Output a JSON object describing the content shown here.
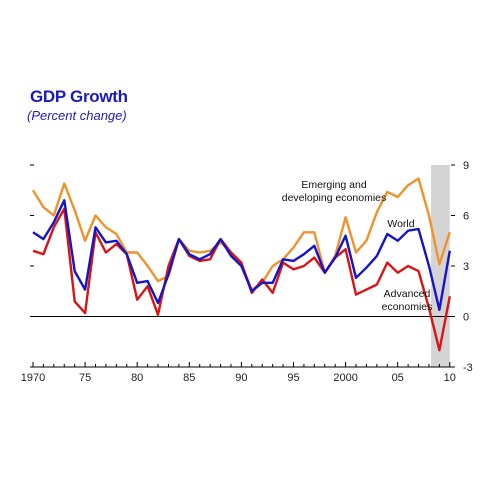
{
  "chart_data": {
    "type": "line",
    "title": "GDP Growth",
    "subtitle": "(Percent change)",
    "xlabel": "",
    "ylabel": "",
    "x": [
      1970,
      1971,
      1972,
      1973,
      1974,
      1975,
      1976,
      1977,
      1978,
      1979,
      1980,
      1981,
      1982,
      1983,
      1984,
      1985,
      1986,
      1987,
      1988,
      1989,
      1990,
      1991,
      1992,
      1993,
      1994,
      1995,
      1996,
      1997,
      1998,
      1999,
      2000,
      2001,
      2002,
      2003,
      2004,
      2005,
      2006,
      2007,
      2008,
      2009,
      2010
    ],
    "xlim": [
      1970,
      2010.5
    ],
    "ylim": [
      -3,
      9
    ],
    "x_tick_labels": [
      {
        "value": 1970,
        "label": "1970"
      },
      {
        "value": 1975,
        "label": "75"
      },
      {
        "value": 1980,
        "label": "80"
      },
      {
        "value": 1985,
        "label": "85"
      },
      {
        "value": 1990,
        "label": "90"
      },
      {
        "value": 1995,
        "label": "95"
      },
      {
        "value": 2000,
        "label": "2000"
      },
      {
        "value": 2005,
        "label": "05"
      },
      {
        "value": 2010,
        "label": "10"
      }
    ],
    "y_ticks": [
      -3,
      0,
      3,
      6,
      9
    ],
    "shaded_region": [
      2008.2,
      2010.0
    ],
    "grid": false,
    "series": [
      {
        "name": "Emerging and developing economies",
        "color": "#f0922a",
        "values": [
          7.5,
          6.5,
          6.0,
          7.9,
          6.3,
          4.5,
          6.0,
          5.3,
          4.9,
          3.8,
          3.8,
          3.0,
          2.1,
          2.4,
          4.6,
          3.9,
          3.8,
          3.9,
          4.4,
          3.8,
          3.1,
          1.6,
          2.0,
          3.0,
          3.4,
          4.1,
          5.0,
          5.0,
          2.6,
          3.6,
          5.9,
          3.8,
          4.5,
          6.2,
          7.4,
          7.1,
          7.8,
          8.2,
          6.0,
          3.1,
          5.0
        ]
      },
      {
        "name": "World",
        "color": "#1414c8",
        "values": [
          5.0,
          4.6,
          5.6,
          6.9,
          2.7,
          1.6,
          5.3,
          4.4,
          4.5,
          3.7,
          2.0,
          2.1,
          0.8,
          2.5,
          4.6,
          3.7,
          3.4,
          3.7,
          4.6,
          3.6,
          3.0,
          1.5,
          2.0,
          2.0,
          3.4,
          3.3,
          3.7,
          4.2,
          2.6,
          3.5,
          4.8,
          2.3,
          2.9,
          3.6,
          4.9,
          4.5,
          5.1,
          5.2,
          3.0,
          0.4,
          3.9
        ]
      },
      {
        "name": "Advanced economies",
        "color": "#d81414",
        "values": [
          3.9,
          3.7,
          5.3,
          6.4,
          0.9,
          0.2,
          5.0,
          3.8,
          4.3,
          3.7,
          1.0,
          1.8,
          0.1,
          3.0,
          4.6,
          3.6,
          3.3,
          3.4,
          4.6,
          3.8,
          3.2,
          1.4,
          2.2,
          1.4,
          3.2,
          2.8,
          3.0,
          3.5,
          2.6,
          3.5,
          4.0,
          1.3,
          1.6,
          1.9,
          3.2,
          2.6,
          3.0,
          2.7,
          0.5,
          -2.0,
          1.2
        ]
      }
    ],
    "annotations": [
      {
        "text_lines": [
          "Emerging and",
          "developing economies"
        ],
        "series": "Emerging and developing economies"
      },
      {
        "text_lines": [
          "World"
        ],
        "series": "World"
      },
      {
        "text_lines": [
          "Advanced",
          "economies"
        ],
        "series": "Advanced economies"
      }
    ]
  }
}
